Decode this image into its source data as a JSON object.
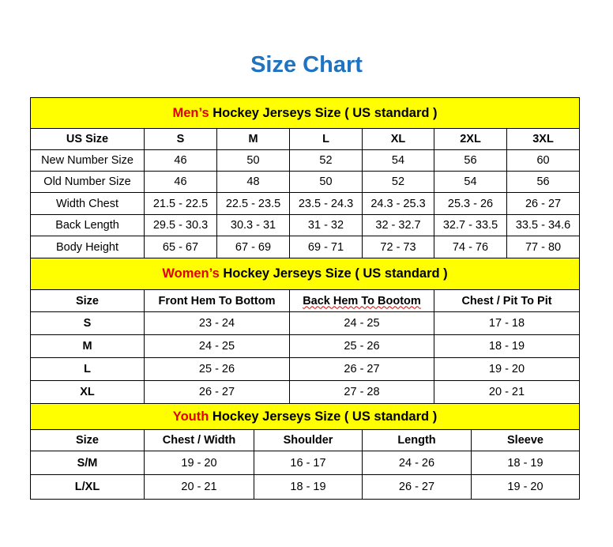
{
  "title": "Size Chart",
  "colors": {
    "title": "#1f73c1",
    "section_bg": "#ffff00",
    "accent": "#e00000"
  },
  "sections": [
    {
      "accent": "Men’s",
      "rest": " Hockey Jerseys Size ( US standard )",
      "headers": [
        "US Size",
        "S",
        "M",
        "L",
        "XL",
        "2XL",
        "3XL"
      ],
      "rows": [
        [
          "New Number Size",
          "46",
          "50",
          "52",
          "54",
          "56",
          "60"
        ],
        [
          "Old Number Size",
          "46",
          "48",
          "50",
          "52",
          "54",
          "56"
        ],
        [
          "Width Chest",
          "21.5 - 22.5",
          "22.5 - 23.5",
          "23.5 - 24.3",
          "24.3 - 25.3",
          "25.3 - 26",
          "26 - 27"
        ],
        [
          "Back Length",
          "29.5 - 30.3",
          "30.3 - 31",
          "31 - 32",
          "32 - 32.7",
          "32.7 - 33.5",
          "33.5 - 34.6"
        ],
        [
          "Body Height",
          "65 - 67",
          "67 - 69",
          "69 - 71",
          "72 - 73",
          "74 - 76",
          "77 - 80"
        ]
      ]
    },
    {
      "accent": "Women’s",
      "rest": " Hockey Jerseys Size ( US standard )",
      "headers": [
        "Size",
        "Front Hem To Bottom",
        "Back Hem To Bootom",
        "Chest / Pit To Pit"
      ],
      "rows": [
        [
          "S",
          "23 - 24",
          "24 - 25",
          "17 - 18"
        ],
        [
          "M",
          "24 - 25",
          "25 - 26",
          "18 - 19"
        ],
        [
          "L",
          "25 - 26",
          "26 - 27",
          "19 - 20"
        ],
        [
          "XL",
          "26 - 27",
          "27 - 28",
          "20 - 21"
        ]
      ]
    },
    {
      "accent": "Youth",
      "rest": " Hockey Jerseys Size ( US standard )",
      "headers": [
        "Size",
        "Chest / Width",
        "Shoulder",
        "Length",
        "Sleeve"
      ],
      "rows": [
        [
          "S/M",
          "19 - 20",
          "16 - 17",
          "24 - 26",
          "18 - 19"
        ],
        [
          "L/XL",
          "20 - 21",
          "18 - 19",
          "26 - 27",
          "19 - 20"
        ]
      ]
    }
  ]
}
